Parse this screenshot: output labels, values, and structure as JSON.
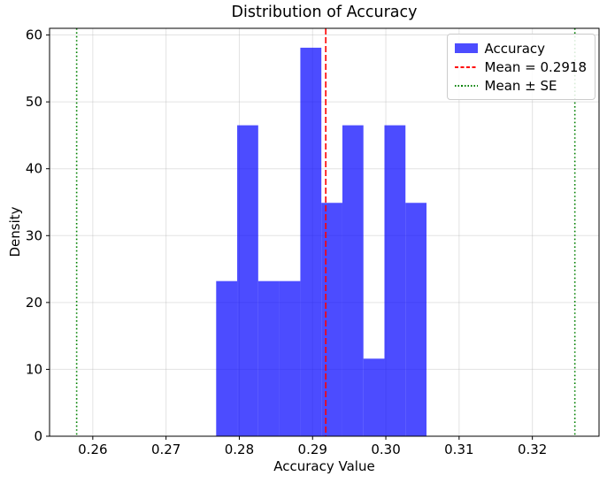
{
  "chart_data": {
    "type": "bar",
    "subtype": "histogram-density",
    "title": "Distribution of Accuracy",
    "xlabel": "Accuracy Value",
    "ylabel": "Density",
    "xlim": [
      0.2541,
      0.3291
    ],
    "ylim": [
      0,
      61
    ],
    "xticks": [
      0.26,
      0.27,
      0.28,
      0.29,
      0.3,
      0.31,
      0.32
    ],
    "xtick_labels": [
      "0.26",
      "0.27",
      "0.28",
      "0.29",
      "0.30",
      "0.31",
      "0.32"
    ],
    "yticks": [
      0,
      10,
      20,
      30,
      40,
      50,
      60
    ],
    "ytick_labels": [
      "0",
      "10",
      "20",
      "30",
      "40",
      "50",
      "60"
    ],
    "bin_edges": [
      0.27684,
      0.27971,
      0.28258,
      0.28545,
      0.28833,
      0.2912,
      0.29407,
      0.29694,
      0.29981,
      0.30268,
      0.30555
    ],
    "densities": [
      23.2,
      46.5,
      23.2,
      23.2,
      58.1,
      34.9,
      46.5,
      11.6,
      46.5,
      34.9
    ],
    "mean_line": {
      "x": 0.2918,
      "color": "#ff0000",
      "style": "dashed"
    },
    "se_lines": {
      "x": [
        0.2578,
        0.3258
      ],
      "color": "#008000",
      "style": "dotted"
    },
    "bar_color": "rgba(0,0,255,0.7)",
    "grid": true,
    "grid_color": "rgba(176,176,176,0.35)",
    "axis_color": "#000000",
    "legend": {
      "position": "upper right",
      "entries": [
        {
          "label": "Accuracy",
          "type": "patch",
          "color": "rgba(0,0,255,0.7)"
        },
        {
          "label": "Mean = 0.2918",
          "type": "dashed-line",
          "color": "#ff0000"
        },
        {
          "label": "Mean ± SE",
          "type": "dotted-line",
          "color": "#008000"
        }
      ]
    }
  }
}
